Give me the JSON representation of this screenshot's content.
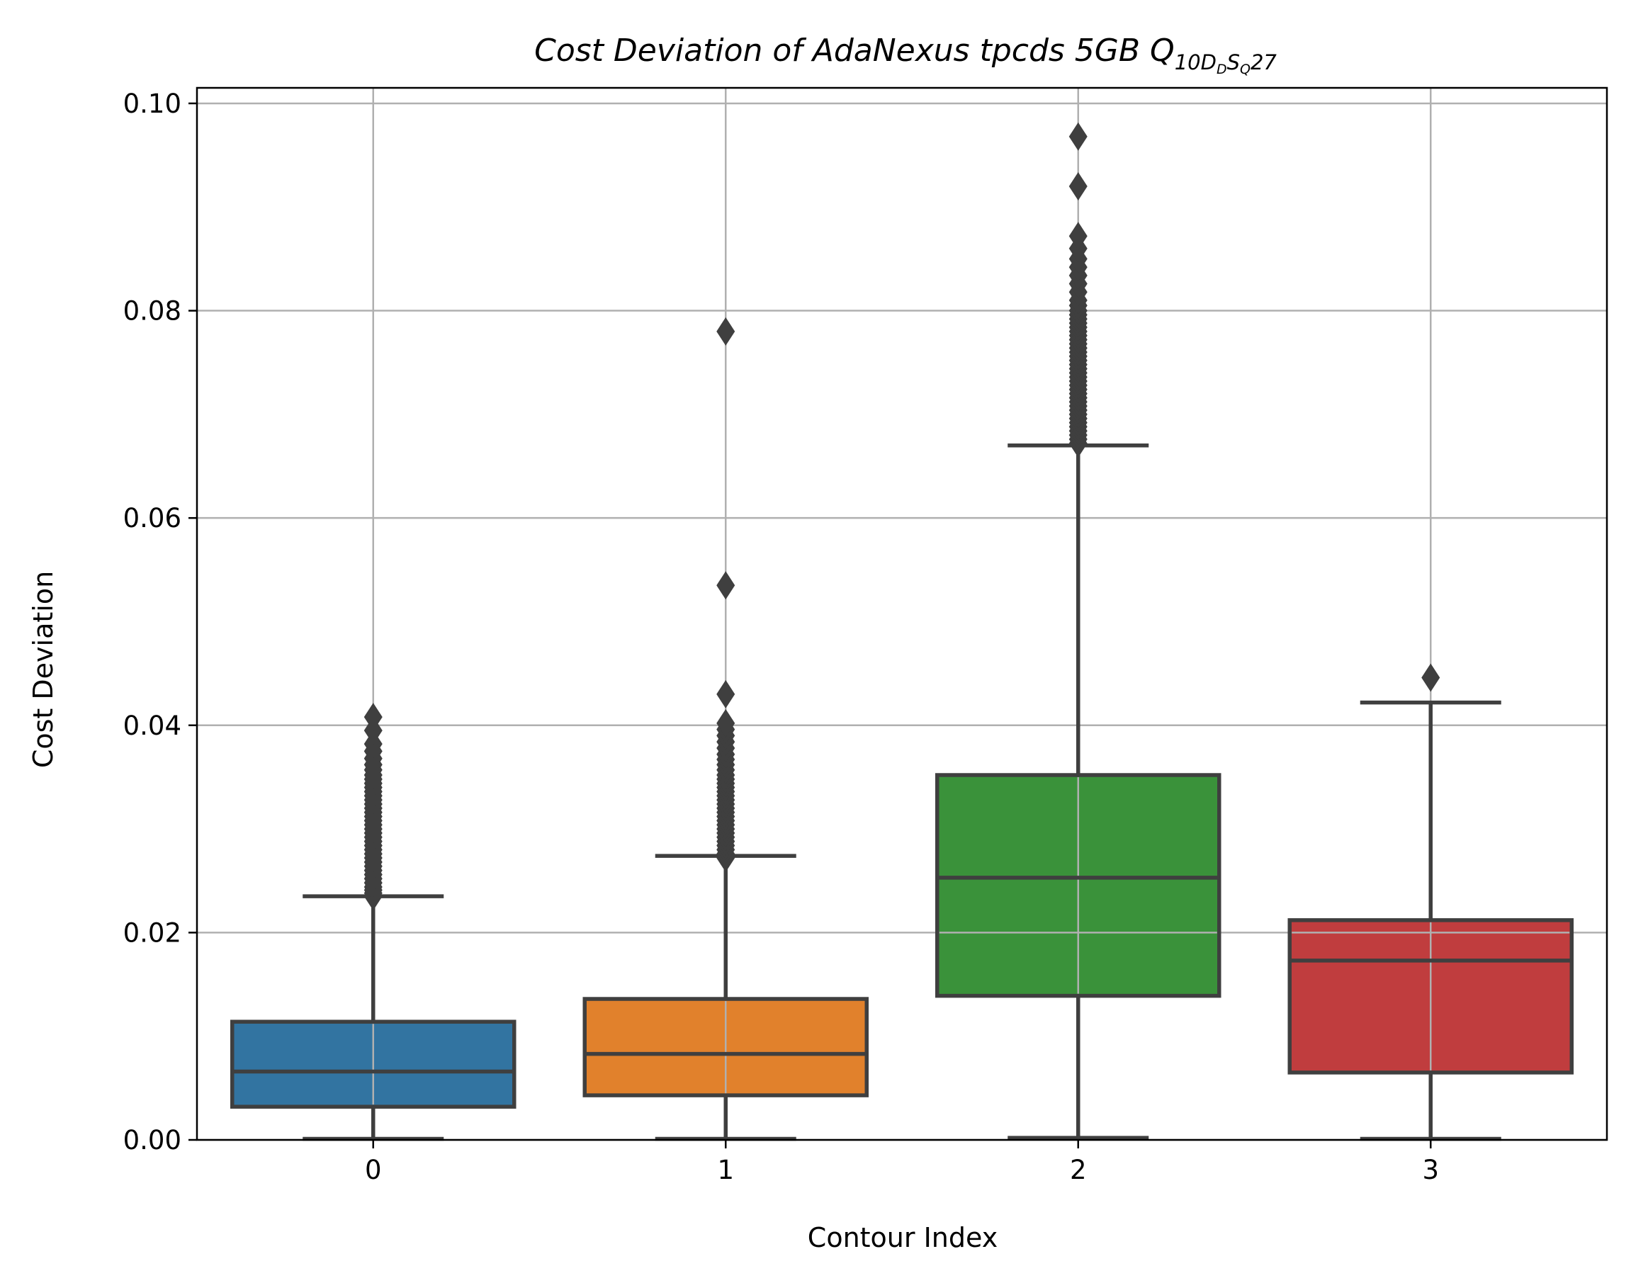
{
  "chart_data": {
    "type": "box",
    "title": {
      "main": "Cost Deviation of AdaNexus tpcds  5GB  Q",
      "sub": "10D",
      "subsub": "D",
      "sub2": "S",
      "subsub2": "Q",
      "tail": "27"
    },
    "xlabel": "Contour Index",
    "ylabel": "Cost Deviation",
    "ylim": [
      0,
      0.1015
    ],
    "yticks": [
      0.0,
      0.02,
      0.04,
      0.06,
      0.08,
      0.1
    ],
    "ytick_labels": [
      "0.00",
      "0.02",
      "0.04",
      "0.06",
      "0.08",
      "0.10"
    ],
    "categories": [
      "0",
      "1",
      "2",
      "3"
    ],
    "grid": true,
    "boxes": [
      {
        "name": "0",
        "color": "#3274a1",
        "whisker_low": 0.0001,
        "q1": 0.0032,
        "median": 0.0066,
        "q3": 0.0114,
        "whisker_high": 0.0235,
        "outliers": [
          0.0235,
          0.0238,
          0.0241,
          0.0244,
          0.0248,
          0.0252,
          0.0256,
          0.026,
          0.0264,
          0.0268,
          0.0272,
          0.0276,
          0.028,
          0.0284,
          0.0288,
          0.0292,
          0.0296,
          0.03,
          0.0304,
          0.0308,
          0.0312,
          0.0316,
          0.032,
          0.0324,
          0.0328,
          0.0332,
          0.0336,
          0.034,
          0.0344,
          0.0348,
          0.0352,
          0.0357,
          0.0362,
          0.0368,
          0.0375,
          0.0382,
          0.0395,
          0.0408
        ]
      },
      {
        "name": "1",
        "color": "#e1812c",
        "whisker_low": 0.0001,
        "q1": 0.0043,
        "median": 0.0083,
        "q3": 0.0136,
        "whisker_high": 0.0274,
        "outliers": [
          0.0272,
          0.0276,
          0.028,
          0.0284,
          0.0288,
          0.0292,
          0.0296,
          0.03,
          0.0304,
          0.0308,
          0.0312,
          0.0316,
          0.032,
          0.0324,
          0.0328,
          0.0332,
          0.0336,
          0.034,
          0.0344,
          0.0348,
          0.0352,
          0.0357,
          0.0362,
          0.0367,
          0.0372,
          0.0378,
          0.0384,
          0.039,
          0.0396,
          0.0402,
          0.043,
          0.0535,
          0.078
        ]
      },
      {
        "name": "2",
        "color": "#3a923a",
        "whisker_low": 0.0002,
        "q1": 0.0139,
        "median": 0.0253,
        "q3": 0.0352,
        "whisker_high": 0.067,
        "outliers": [
          0.0672,
          0.0676,
          0.068,
          0.0684,
          0.0688,
          0.0692,
          0.0696,
          0.07,
          0.0704,
          0.0708,
          0.0712,
          0.0716,
          0.072,
          0.0724,
          0.0728,
          0.0732,
          0.0736,
          0.074,
          0.0744,
          0.0748,
          0.0752,
          0.0756,
          0.076,
          0.0764,
          0.0768,
          0.0772,
          0.0776,
          0.078,
          0.0784,
          0.0788,
          0.0792,
          0.0796,
          0.08,
          0.0805,
          0.081,
          0.0818,
          0.0826,
          0.0834,
          0.0842,
          0.085,
          0.086,
          0.0872,
          0.092,
          0.0968
        ]
      },
      {
        "name": "3",
        "color": "#c03d3e",
        "whisker_low": 0.0001,
        "q1": 0.0065,
        "median": 0.0173,
        "q3": 0.0212,
        "whisker_high": 0.0422,
        "outliers": [
          0.0446
        ]
      }
    ]
  }
}
